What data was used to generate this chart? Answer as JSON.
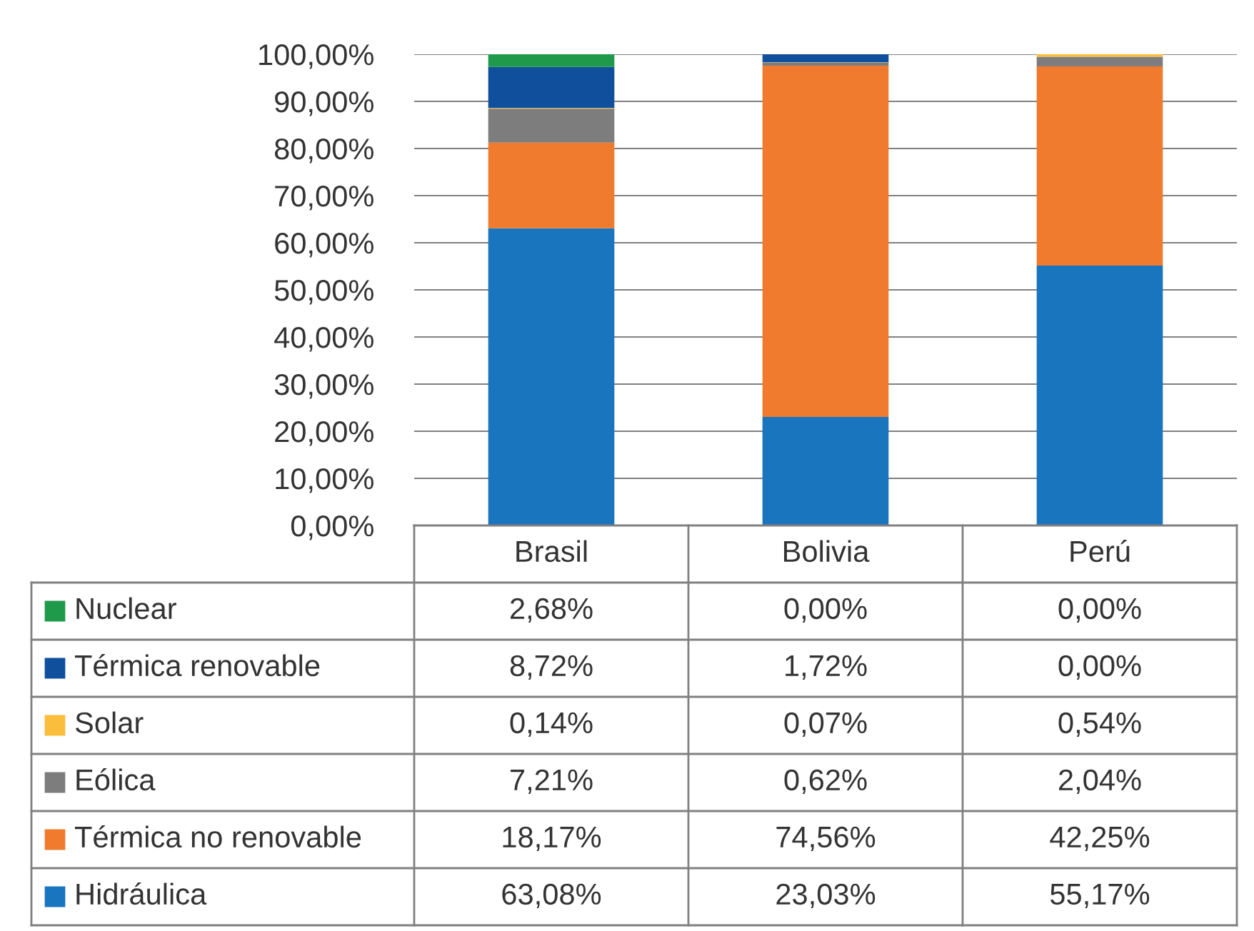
{
  "chart_data": {
    "type": "bar",
    "stacked": true,
    "categories": [
      "Brasil",
      "Bolivia",
      "Perú"
    ],
    "series": [
      {
        "name": "Hidráulica",
        "color": "#1a75bf",
        "values": [
          63.08,
          23.03,
          55.17
        ],
        "value_labels": [
          "63,08%",
          "23,03%",
          "55,17%"
        ]
      },
      {
        "name": "Térmica no renovable",
        "color": "#f07b2e",
        "values": [
          18.17,
          74.56,
          42.25
        ],
        "value_labels": [
          "18,17%",
          "74,56%",
          "42,25%"
        ]
      },
      {
        "name": "Eólica",
        "color": "#7d7d7d",
        "values": [
          7.21,
          0.62,
          2.04
        ],
        "value_labels": [
          "7,21%",
          "0,62%",
          "2,04%"
        ]
      },
      {
        "name": "Solar",
        "color": "#fbbd3c",
        "values": [
          0.14,
          0.07,
          0.54
        ],
        "value_labels": [
          "0,14%",
          "0,07%",
          "0,54%"
        ]
      },
      {
        "name": "Térmica renovable",
        "color": "#0f4f9c",
        "values": [
          8.72,
          1.72,
          0.0
        ],
        "value_labels": [
          "8,72%",
          "1,72%",
          "0,00%"
        ]
      },
      {
        "name": "Nuclear",
        "color": "#1f9a4a",
        "values": [
          2.68,
          0.0,
          0.0
        ],
        "value_labels": [
          "2,68%",
          "0,00%",
          "0,00%"
        ]
      }
    ],
    "ylim": [
      0,
      100
    ],
    "yticks": [
      {
        "value": 0,
        "label": "0,00%"
      },
      {
        "value": 10,
        "label": "10,00%"
      },
      {
        "value": 20,
        "label": "20,00%"
      },
      {
        "value": 30,
        "label": "30,00%"
      },
      {
        "value": 40,
        "label": "40,00%"
      },
      {
        "value": 50,
        "label": "50,00%"
      },
      {
        "value": 60,
        "label": "60,00%"
      },
      {
        "value": 70,
        "label": "70,00%"
      },
      {
        "value": 80,
        "label": "80,00%"
      },
      {
        "value": 90,
        "label": "90,00%"
      },
      {
        "value": 100,
        "label": "100,00%"
      }
    ],
    "grid": "y",
    "legend": "bottom"
  }
}
